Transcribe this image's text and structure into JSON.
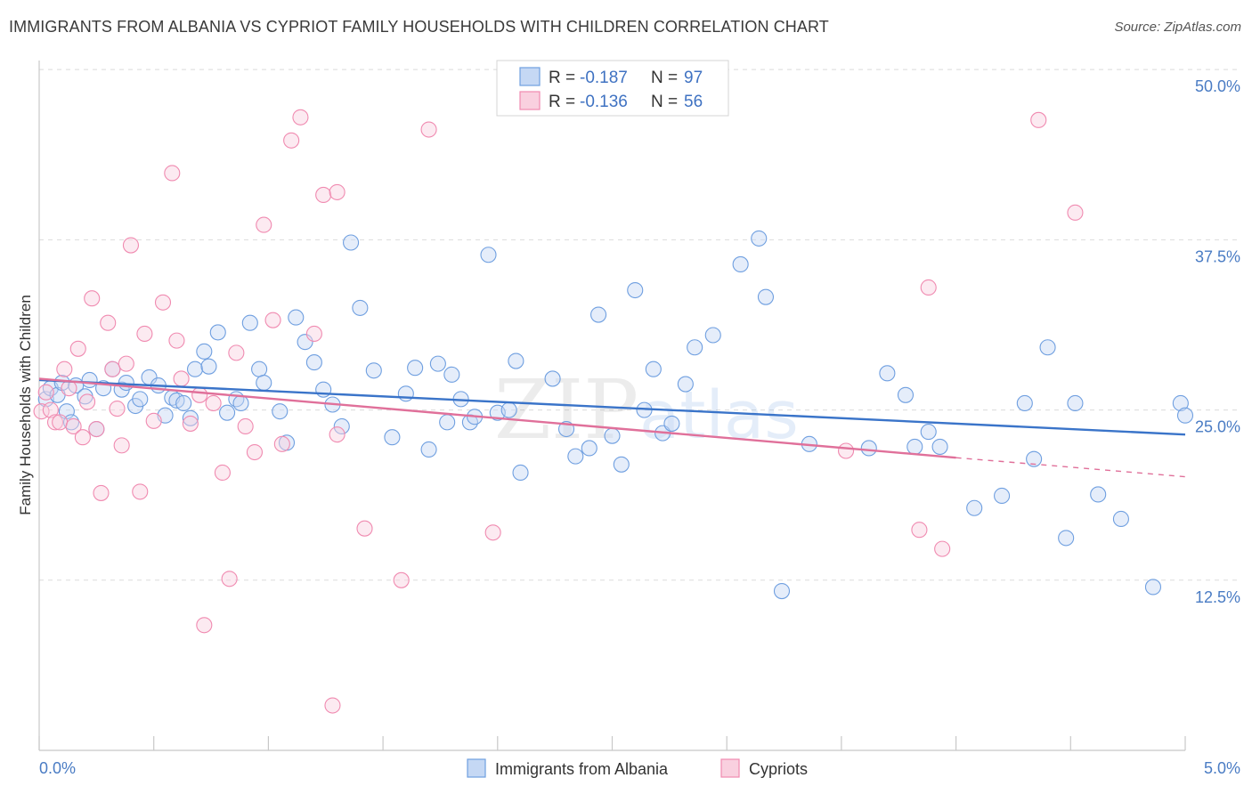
{
  "title": "IMMIGRANTS FROM ALBANIA VS CYPRIOT FAMILY HOUSEHOLDS WITH CHILDREN CORRELATION CHART",
  "source": "Source: ZipAtlas.com",
  "watermark": {
    "zip": "ZIP",
    "atlas": "atlas"
  },
  "colors": {
    "blue": "#6f9fe0",
    "blue_line": "#3a74c9",
    "pink": "#f08ab0",
    "pink_line": "#e0709a",
    "tick": "#4a7cc4"
  },
  "legend_top": {
    "rows": [
      {
        "r_label": "R = ",
        "r_value": "-0.187",
        "n_label": "N = ",
        "n_value": "97"
      },
      {
        "r_label": "R = ",
        "r_value": "-0.136",
        "n_label": "N = ",
        "n_value": "56"
      }
    ]
  },
  "legend_bottom": {
    "items": [
      "Immigrants from Albania",
      "Cypriots"
    ]
  },
  "chart_data": {
    "type": "scatter",
    "ylabel": "Family Households with Children",
    "xlabel": "",
    "xlim": [
      0,
      5.0
    ],
    "ylim": [
      0,
      52.5
    ],
    "x_tick_labels": [
      "0.0%",
      "5.0%"
    ],
    "y_ticks": [
      12.5,
      25.0,
      37.5,
      50.0
    ],
    "y_tick_labels": [
      "12.5%",
      "25.0%",
      "37.5%",
      "50.0%"
    ],
    "grid": true,
    "series": [
      {
        "name": "Immigrants from Albania",
        "color": "#6f9fe0",
        "trend": {
          "x0": 0.0,
          "y0": 27.2,
          "x1": 5.0,
          "y1": 23.2
        },
        "points": [
          [
            0.03,
            25.8
          ],
          [
            0.05,
            26.6
          ],
          [
            0.08,
            26.1
          ],
          [
            0.1,
            27.0
          ],
          [
            0.12,
            24.9
          ],
          [
            0.14,
            24.1
          ],
          [
            0.16,
            26.8
          ],
          [
            0.2,
            26.0
          ],
          [
            0.22,
            27.2
          ],
          [
            0.25,
            23.6
          ],
          [
            0.28,
            26.6
          ],
          [
            0.32,
            28.0
          ],
          [
            0.36,
            26.5
          ],
          [
            0.38,
            27.0
          ],
          [
            0.42,
            25.3
          ],
          [
            0.44,
            25.8
          ],
          [
            0.48,
            27.4
          ],
          [
            0.52,
            26.8
          ],
          [
            0.55,
            24.6
          ],
          [
            0.58,
            25.9
          ],
          [
            0.6,
            25.7
          ],
          [
            0.63,
            25.5
          ],
          [
            0.66,
            24.4
          ],
          [
            0.68,
            28.0
          ],
          [
            0.72,
            29.3
          ],
          [
            0.74,
            28.2
          ],
          [
            0.78,
            30.7
          ],
          [
            0.82,
            24.8
          ],
          [
            0.86,
            25.8
          ],
          [
            0.88,
            25.5
          ],
          [
            0.92,
            31.4
          ],
          [
            0.96,
            28.0
          ],
          [
            0.98,
            27.0
          ],
          [
            1.05,
            24.9
          ],
          [
            1.08,
            22.6
          ],
          [
            1.12,
            31.8
          ],
          [
            1.16,
            30.0
          ],
          [
            1.2,
            28.5
          ],
          [
            1.24,
            26.5
          ],
          [
            1.28,
            25.4
          ],
          [
            1.32,
            23.8
          ],
          [
            1.36,
            37.3
          ],
          [
            1.4,
            32.5
          ],
          [
            1.46,
            27.9
          ],
          [
            1.54,
            23.0
          ],
          [
            1.6,
            26.2
          ],
          [
            1.64,
            28.1
          ],
          [
            1.7,
            22.1
          ],
          [
            1.74,
            28.4
          ],
          [
            1.78,
            24.1
          ],
          [
            1.8,
            27.6
          ],
          [
            1.84,
            25.8
          ],
          [
            1.88,
            24.1
          ],
          [
            1.9,
            24.5
          ],
          [
            1.96,
            36.4
          ],
          [
            2.0,
            24.8
          ],
          [
            2.05,
            25.0
          ],
          [
            2.08,
            28.6
          ],
          [
            2.1,
            20.4
          ],
          [
            2.24,
            27.3
          ],
          [
            2.3,
            23.6
          ],
          [
            2.34,
            21.6
          ],
          [
            2.4,
            22.2
          ],
          [
            2.44,
            32.0
          ],
          [
            2.5,
            23.1
          ],
          [
            2.54,
            21.0
          ],
          [
            2.6,
            33.8
          ],
          [
            2.64,
            25.0
          ],
          [
            2.68,
            28.0
          ],
          [
            2.72,
            23.3
          ],
          [
            2.76,
            24.0
          ],
          [
            2.82,
            26.9
          ],
          [
            2.86,
            29.6
          ],
          [
            2.94,
            30.5
          ],
          [
            3.06,
            35.7
          ],
          [
            3.14,
            37.6
          ],
          [
            3.17,
            33.3
          ],
          [
            3.24,
            11.7
          ],
          [
            3.36,
            22.5
          ],
          [
            3.62,
            22.2
          ],
          [
            3.7,
            27.7
          ],
          [
            3.78,
            26.1
          ],
          [
            3.82,
            22.3
          ],
          [
            3.88,
            23.4
          ],
          [
            3.93,
            22.3
          ],
          [
            4.08,
            17.8
          ],
          [
            4.2,
            18.7
          ],
          [
            4.3,
            25.5
          ],
          [
            4.34,
            21.4
          ],
          [
            4.4,
            29.6
          ],
          [
            4.48,
            15.6
          ],
          [
            4.52,
            25.5
          ],
          [
            4.62,
            18.8
          ],
          [
            4.72,
            17.0
          ],
          [
            4.86,
            12.0
          ],
          [
            4.98,
            25.5
          ],
          [
            5.0,
            24.6
          ]
        ]
      },
      {
        "name": "Cypriots",
        "color": "#f08ab0",
        "trend": {
          "x0": 0.0,
          "y0": 27.3,
          "x1": 4.0,
          "y1": 21.5,
          "dash_to_x": 5.0,
          "dash_to_y": 20.1
        },
        "points": [
          [
            0.01,
            24.9
          ],
          [
            0.03,
            26.3
          ],
          [
            0.05,
            25.0
          ],
          [
            0.07,
            24.1
          ],
          [
            0.09,
            24.1
          ],
          [
            0.11,
            28.0
          ],
          [
            0.13,
            26.6
          ],
          [
            0.15,
            23.8
          ],
          [
            0.17,
            29.5
          ],
          [
            0.19,
            23.0
          ],
          [
            0.21,
            25.6
          ],
          [
            0.23,
            33.2
          ],
          [
            0.25,
            23.6
          ],
          [
            0.27,
            18.9
          ],
          [
            0.3,
            31.4
          ],
          [
            0.32,
            28.0
          ],
          [
            0.34,
            25.1
          ],
          [
            0.36,
            22.4
          ],
          [
            0.38,
            28.4
          ],
          [
            0.4,
            37.1
          ],
          [
            0.44,
            19.0
          ],
          [
            0.46,
            30.6
          ],
          [
            0.5,
            24.2
          ],
          [
            0.54,
            32.9
          ],
          [
            0.58,
            42.4
          ],
          [
            0.6,
            30.1
          ],
          [
            0.62,
            27.3
          ],
          [
            0.66,
            24.0
          ],
          [
            0.7,
            26.1
          ],
          [
            0.72,
            9.2
          ],
          [
            0.76,
            25.5
          ],
          [
            0.8,
            20.4
          ],
          [
            0.83,
            12.6
          ],
          [
            0.86,
            29.2
          ],
          [
            0.9,
            23.8
          ],
          [
            0.94,
            21.9
          ],
          [
            0.98,
            38.6
          ],
          [
            1.02,
            31.6
          ],
          [
            1.06,
            22.5
          ],
          [
            1.1,
            44.8
          ],
          [
            1.14,
            46.5
          ],
          [
            1.2,
            30.6
          ],
          [
            1.24,
            40.8
          ],
          [
            1.28,
            3.3
          ],
          [
            1.3,
            23.2
          ],
          [
            1.3,
            41.0
          ],
          [
            1.42,
            16.3
          ],
          [
            1.58,
            12.5
          ],
          [
            1.7,
            45.6
          ],
          [
            1.98,
            16.0
          ],
          [
            3.52,
            22.0
          ],
          [
            3.84,
            16.2
          ],
          [
            3.88,
            34.0
          ],
          [
            3.94,
            14.8
          ],
          [
            4.36,
            46.3
          ],
          [
            4.52,
            39.5
          ]
        ]
      }
    ]
  }
}
